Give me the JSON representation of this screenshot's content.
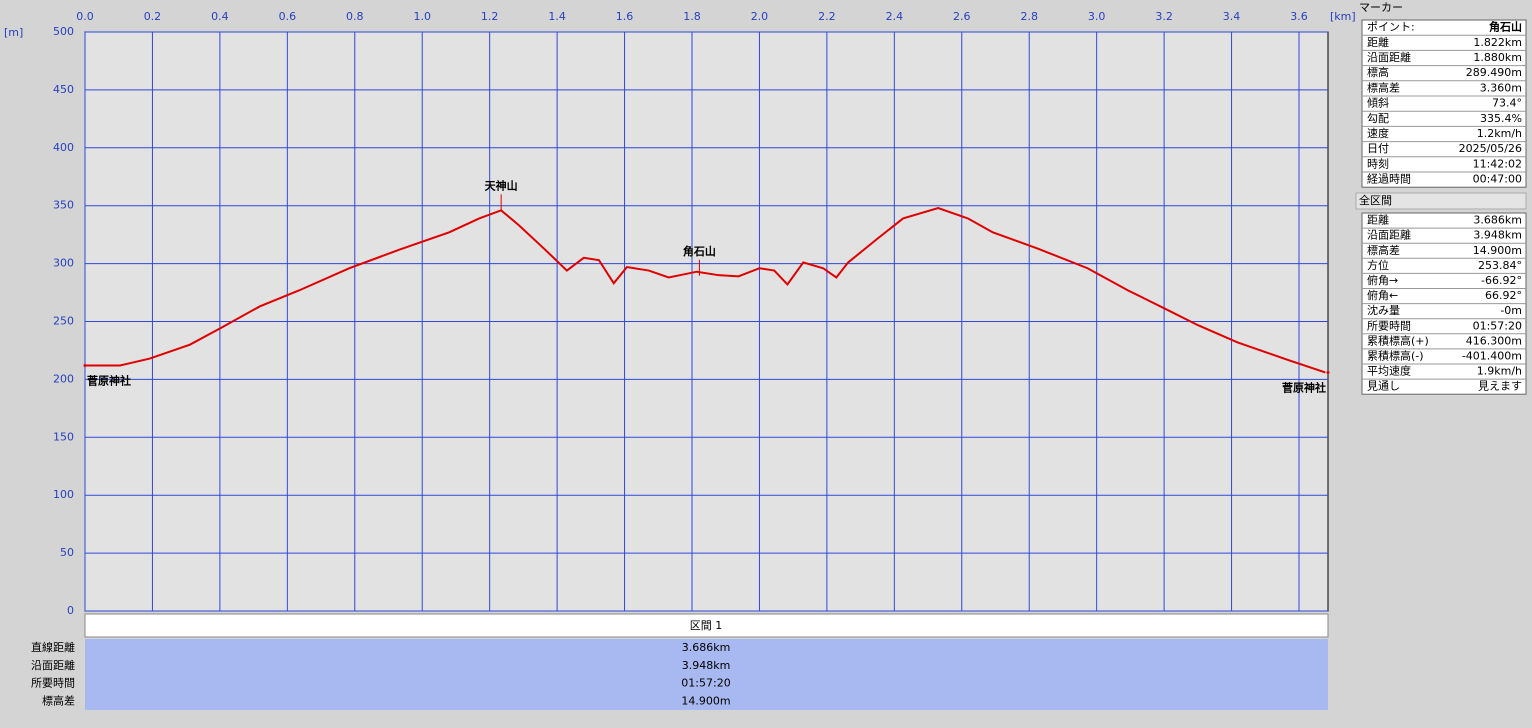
{
  "chart_data": {
    "type": "line",
    "x_unit": "[km]",
    "y_unit": "[m]",
    "xlim": [
      0,
      3.686
    ],
    "ylim": [
      0,
      500
    ],
    "xticks": [
      {
        "value": 0,
        "label": "0.0"
      },
      {
        "value": 0.2,
        "label": "0.2"
      },
      {
        "value": 0.4,
        "label": "0.4"
      },
      {
        "value": 0.6,
        "label": "0.6"
      },
      {
        "value": 0.8,
        "label": "0.8"
      },
      {
        "value": 1,
        "label": "1.0"
      },
      {
        "value": 1.2,
        "label": "1.2"
      },
      {
        "value": 1.4,
        "label": "1.4"
      },
      {
        "value": 1.6,
        "label": "1.6"
      },
      {
        "value": 1.8,
        "label": "1.8"
      },
      {
        "value": 2,
        "label": "2.0"
      },
      {
        "value": 2.2,
        "label": "2.2"
      },
      {
        "value": 2.4,
        "label": "2.4"
      },
      {
        "value": 2.6,
        "label": "2.6"
      },
      {
        "value": 2.8,
        "label": "2.8"
      },
      {
        "value": 3,
        "label": "3.0"
      },
      {
        "value": 3.2,
        "label": "3.2"
      },
      {
        "value": 3.4,
        "label": "3.4"
      },
      {
        "value": 3.6,
        "label": "3.6"
      }
    ],
    "yticks": [
      0,
      50,
      100,
      150,
      200,
      250,
      300,
      350,
      400,
      450,
      500
    ],
    "grid": true,
    "series": [
      {
        "color": "#e00000",
        "x": [
          0,
          0.104,
          0.192,
          0.311,
          0.4,
          0.518,
          0.636,
          0.784,
          0.932,
          1.08,
          1.169,
          1.234,
          1.287,
          1.361,
          1.429,
          1.479,
          1.524,
          1.568,
          1.607,
          1.672,
          1.731,
          1.814,
          1.879,
          1.938,
          2.0,
          2.044,
          2.083,
          2.13,
          2.189,
          2.228,
          2.263,
          2.352,
          2.426,
          2.53,
          2.618,
          2.692,
          2.825,
          2.973,
          3.092,
          3.21,
          3.299,
          3.417,
          3.565,
          3.678
        ],
        "values": [
          212,
          212,
          218,
          230,
          244,
          263,
          277,
          296,
          312,
          327,
          339,
          346,
          333,
          313,
          294,
          305,
          303,
          283,
          297,
          294,
          288,
          293,
          290,
          289,
          296,
          294,
          282,
          301,
          296,
          288,
          301,
          322,
          339,
          348,
          339,
          327,
          313,
          296,
          277,
          260,
          247,
          232,
          217,
          206
        ]
      }
    ],
    "annotations": [
      {
        "text": "菅原神社",
        "x": 0,
        "y": 212
      },
      {
        "text": "天神山",
        "x": 1.234,
        "y": 346
      },
      {
        "text": "角石山",
        "x": 1.822,
        "y": 289.49
      },
      {
        "text": "菅原神社",
        "x": 3.686,
        "y": 206
      }
    ]
  },
  "segment_table": {
    "title": "区間 1",
    "rows": [
      [
        "直線距離",
        "3.686km"
      ],
      [
        "沿面距離",
        "3.948km"
      ],
      [
        "所要時間",
        "01:57:20"
      ],
      [
        "標高差",
        "14.900m"
      ]
    ]
  },
  "marker_panel": {
    "title": "マーカー",
    "rows": [
      [
        "ポイント:",
        "角石山"
      ],
      [
        "距離",
        "1.822km"
      ],
      [
        "沿面距離",
        "1.880km"
      ],
      [
        "標高",
        "289.490m"
      ],
      [
        "標高差",
        "3.360m"
      ],
      [
        "傾斜",
        "73.4°"
      ],
      [
        "勾配",
        "335.4%"
      ],
      [
        "速度",
        "1.2km/h"
      ],
      [
        "日付",
        "2025/05/26"
      ],
      [
        "時刻",
        "11:42:02"
      ],
      [
        "経過時間",
        "00:47:00"
      ]
    ]
  },
  "total_panel": {
    "title": "全区間",
    "rows": [
      [
        "距離",
        "3.686km"
      ],
      [
        "沿面距離",
        "3.948km"
      ],
      [
        "標高差",
        "14.900m"
      ],
      [
        "方位",
        "253.84°"
      ],
      [
        "俯角→",
        "-66.92°"
      ],
      [
        "俯角←",
        "66.92°"
      ],
      [
        "沈み量",
        "-0m"
      ],
      [
        "所要時間",
        "01:57:20"
      ],
      [
        "累積標高(+)",
        "416.300m"
      ],
      [
        "累積標高(-)",
        "-401.400m"
      ],
      [
        "平均速度",
        "1.9km/h"
      ],
      [
        "見通し",
        "見えます"
      ]
    ]
  }
}
